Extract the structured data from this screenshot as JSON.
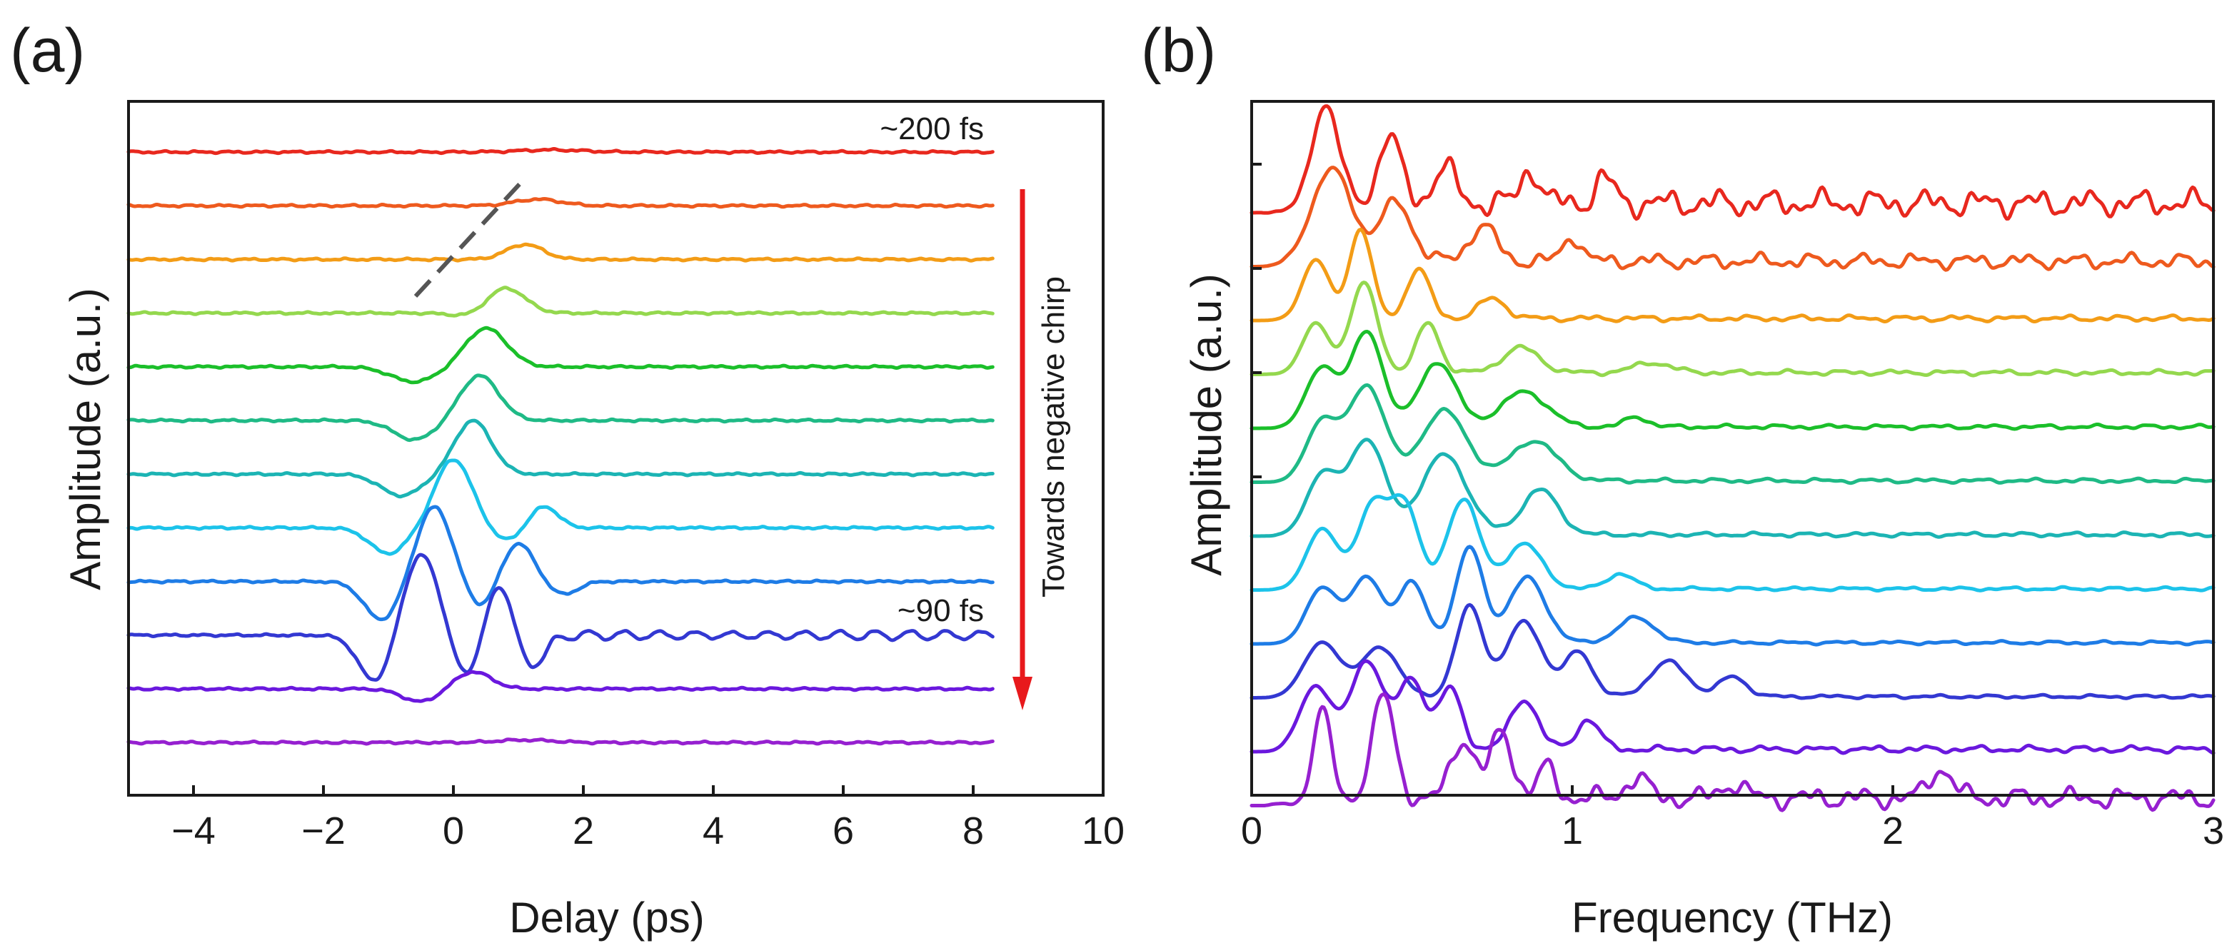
{
  "chart_data": [
    {
      "type": "line",
      "panel_label": "(a)",
      "title": "",
      "xlabel": "Delay (ps)",
      "ylabel": "Amplitude (a.u.)",
      "xlim": [
        -5,
        10
      ],
      "x_ticks": [
        -4,
        -2,
        0,
        2,
        4,
        6,
        8,
        10
      ],
      "x_tick_labels": [
        "−4",
        "−2",
        "0",
        "2",
        "4",
        "6",
        "8",
        "10"
      ],
      "data_range": [
        -5,
        8.3
      ],
      "grid": false,
      "annotations": {
        "top_label": "~200 fs",
        "bottom_label": "~90 fs",
        "arrow_label": "Towards negative chirp"
      },
      "series": [
        {
          "name": "trace-1",
          "color": "#e8281e",
          "pulse": {
            "center": 1.5,
            "amp": 0.05,
            "width": 0.7
          }
        },
        {
          "name": "trace-2",
          "color": "#ee5a1e",
          "pulse": {
            "center": 1.3,
            "amp": 0.15,
            "width": 0.5
          }
        },
        {
          "name": "trace-3",
          "color": "#f39c16",
          "pulse": {
            "center": 1.1,
            "amp": 0.35,
            "width": 0.4
          }
        },
        {
          "name": "trace-4",
          "color": "#94d84e",
          "pulse": {
            "center": 0.8,
            "amp": 0.6,
            "width": 0.42
          },
          "dip": {
            "center": 0.3,
            "amp": -0.1,
            "width": 0.4
          }
        },
        {
          "name": "trace-5",
          "color": "#1bbf2a",
          "pulse": {
            "center": 0.5,
            "amp": 0.9,
            "width": 0.45
          },
          "dip": {
            "center": -0.6,
            "amp": -0.35,
            "width": 0.5
          }
        },
        {
          "name": "trace-6",
          "color": "#1fba86",
          "pulse": {
            "center": 0.4,
            "amp": 1.05,
            "width": 0.42
          },
          "dip": {
            "center": -0.6,
            "amp": -0.45,
            "width": 0.45
          }
        },
        {
          "name": "trace-7",
          "color": "#1cb4b4",
          "pulse": {
            "center": 0.3,
            "amp": 1.25,
            "width": 0.4
          },
          "dip": {
            "center": -0.8,
            "amp": -0.5,
            "width": 0.45
          }
        },
        {
          "name": "trace-8",
          "color": "#1cc3ea",
          "pulse": {
            "center": 0.0,
            "amp": 1.6,
            "width": 0.4
          },
          "dip": {
            "center": -1.0,
            "amp": -0.6,
            "width": 0.4
          },
          "extra": [
            {
              "center": 1.4,
              "amp": 0.5,
              "width": 0.3
            },
            {
              "center": 0.8,
              "amp": -0.3,
              "width": 0.3
            }
          ]
        },
        {
          "name": "trace-9",
          "color": "#1e7ce6",
          "pulse": {
            "center": -0.3,
            "amp": 1.75,
            "width": 0.38
          },
          "dip": {
            "center": -1.1,
            "amp": -0.9,
            "width": 0.38
          },
          "extra": [
            {
              "center": 1.0,
              "amp": 0.9,
              "width": 0.32
            },
            {
              "center": 0.4,
              "amp": -0.6,
              "width": 0.3
            },
            {
              "center": 1.7,
              "amp": -0.3,
              "width": 0.3
            }
          ]
        },
        {
          "name": "trace-10",
          "color": "#3338d2",
          "pulse": {
            "center": -0.5,
            "amp": 1.9,
            "width": 0.38
          },
          "dip": {
            "center": -1.2,
            "amp": -1.1,
            "width": 0.36
          },
          "extra": [
            {
              "center": 0.7,
              "amp": 1.2,
              "width": 0.3
            },
            {
              "center": 0.2,
              "amp": -1.0,
              "width": 0.3
            },
            {
              "center": 1.2,
              "amp": -0.8,
              "width": 0.28
            }
          ],
          "ripple": {
            "start": 1.4,
            "end": 8.3,
            "amp": 0.09,
            "period": 0.55
          }
        },
        {
          "name": "trace-11",
          "color": "#6a18de",
          "pulse": {
            "center": 0.3,
            "amp": 0.4,
            "width": 0.4
          },
          "dip": {
            "center": -0.5,
            "amp": -0.3,
            "width": 0.4
          }
        },
        {
          "name": "trace-12",
          "color": "#9620d0",
          "pulse": {
            "center": 1.1,
            "amp": 0.06,
            "width": 0.6
          }
        }
      ]
    },
    {
      "type": "line",
      "panel_label": "(b)",
      "title": "",
      "xlabel": "Frequency (THz)",
      "ylabel": "Amplitude (a.u.)",
      "xlim": [
        0,
        3
      ],
      "x_ticks": [
        0,
        1,
        2,
        3
      ],
      "x_tick_labels": [
        "0",
        "1",
        "2",
        "3"
      ],
      "grid": false,
      "series": [
        {
          "name": "spectrum-1",
          "color": "#e8281e",
          "peaks": [
            [
              0.23,
              2.1,
              0.06
            ],
            [
              0.43,
              1.4,
              0.05
            ],
            [
              0.6,
              0.7,
              0.05
            ],
            [
              0.87,
              0.7,
              0.04
            ],
            [
              1.1,
              0.5,
              0.04
            ]
          ],
          "noise": 0.32
        },
        {
          "name": "spectrum-2",
          "color": "#ee5a1e",
          "peaks": [
            [
              0.25,
              1.9,
              0.09
            ],
            [
              0.45,
              1.2,
              0.07
            ],
            [
              0.72,
              0.7,
              0.06
            ],
            [
              1.0,
              0.5,
              0.04
            ]
          ],
          "noise": 0.18
        },
        {
          "name": "spectrum-3",
          "color": "#f39c16",
          "peaks": [
            [
              0.2,
              1.2,
              0.06
            ],
            [
              0.34,
              1.8,
              0.05
            ],
            [
              0.52,
              1.0,
              0.05
            ],
            [
              0.75,
              0.4,
              0.06
            ]
          ],
          "noise": 0.07
        },
        {
          "name": "spectrum-4",
          "color": "#94d84e",
          "peaks": [
            [
              0.2,
              1.0,
              0.06
            ],
            [
              0.35,
              1.8,
              0.06
            ],
            [
              0.55,
              1.0,
              0.05
            ],
            [
              0.84,
              0.5,
              0.08
            ],
            [
              1.25,
              0.2,
              0.08
            ]
          ],
          "noise": 0.06
        },
        {
          "name": "spectrum-5",
          "color": "#1bbf2a",
          "peaks": [
            [
              0.22,
              1.2,
              0.07
            ],
            [
              0.36,
              1.9,
              0.07
            ],
            [
              0.58,
              1.3,
              0.08
            ],
            [
              0.85,
              0.7,
              0.1
            ],
            [
              1.2,
              0.2,
              0.05
            ]
          ],
          "noise": 0.05
        },
        {
          "name": "spectrum-6",
          "color": "#1fba86",
          "peaks": [
            [
              0.22,
              1.2,
              0.07
            ],
            [
              0.36,
              1.9,
              0.08
            ],
            [
              0.6,
              1.4,
              0.1
            ],
            [
              0.88,
              0.8,
              0.1
            ]
          ],
          "noise": 0.05
        },
        {
          "name": "spectrum-7",
          "color": "#1cb4b4",
          "peaks": [
            [
              0.22,
              1.2,
              0.07
            ],
            [
              0.36,
              1.9,
              0.08
            ],
            [
              0.6,
              1.6,
              0.1
            ],
            [
              0.9,
              0.9,
              0.08
            ]
          ],
          "noise": 0.05
        },
        {
          "name": "spectrum-8",
          "color": "#1cc3ea",
          "peaks": [
            [
              0.22,
              1.2,
              0.07
            ],
            [
              0.38,
              1.7,
              0.07
            ],
            [
              0.48,
              1.6,
              0.06
            ],
            [
              0.66,
              1.8,
              0.07
            ],
            [
              0.85,
              0.9,
              0.08
            ],
            [
              1.15,
              0.3,
              0.06
            ]
          ],
          "noise": 0.04
        },
        {
          "name": "spectrum-9",
          "color": "#1e7ce6",
          "peaks": [
            [
              0.22,
              1.1,
              0.07
            ],
            [
              0.36,
              1.3,
              0.07
            ],
            [
              0.5,
              1.2,
              0.06
            ],
            [
              0.68,
              1.9,
              0.06
            ],
            [
              0.86,
              1.3,
              0.08
            ],
            [
              1.2,
              0.5,
              0.08
            ]
          ],
          "noise": 0.04
        },
        {
          "name": "spectrum-10",
          "color": "#3338d2",
          "peaks": [
            [
              0.22,
              1.1,
              0.08
            ],
            [
              0.4,
              1.0,
              0.08
            ],
            [
              0.68,
              1.8,
              0.06
            ],
            [
              0.85,
              1.5,
              0.08
            ],
            [
              1.02,
              0.9,
              0.06
            ],
            [
              1.3,
              0.7,
              0.08
            ],
            [
              1.5,
              0.4,
              0.06
            ]
          ],
          "noise": 0.04
        },
        {
          "name": "spectrum-11",
          "color": "#6a18de",
          "peaks": [
            [
              0.2,
              1.3,
              0.07
            ],
            [
              0.36,
              1.8,
              0.07
            ],
            [
              0.5,
              1.4,
              0.06
            ],
            [
              0.62,
              1.2,
              0.05
            ],
            [
              0.85,
              1.0,
              0.06
            ],
            [
              1.05,
              0.6,
              0.05
            ]
          ],
          "noise": 0.08
        },
        {
          "name": "spectrum-12",
          "color": "#9620d0",
          "peaks": [
            [
              0.22,
              1.9,
              0.04
            ],
            [
              0.41,
              2.1,
              0.05
            ],
            [
              0.66,
              1.2,
              0.05
            ],
            [
              0.78,
              1.3,
              0.05
            ],
            [
              0.92,
              0.6,
              0.04
            ],
            [
              1.2,
              0.4,
              0.05
            ],
            [
              1.5,
              0.3,
              0.05
            ],
            [
              2.15,
              0.6,
              0.05
            ]
          ],
          "noise": 0.25
        }
      ]
    }
  ]
}
